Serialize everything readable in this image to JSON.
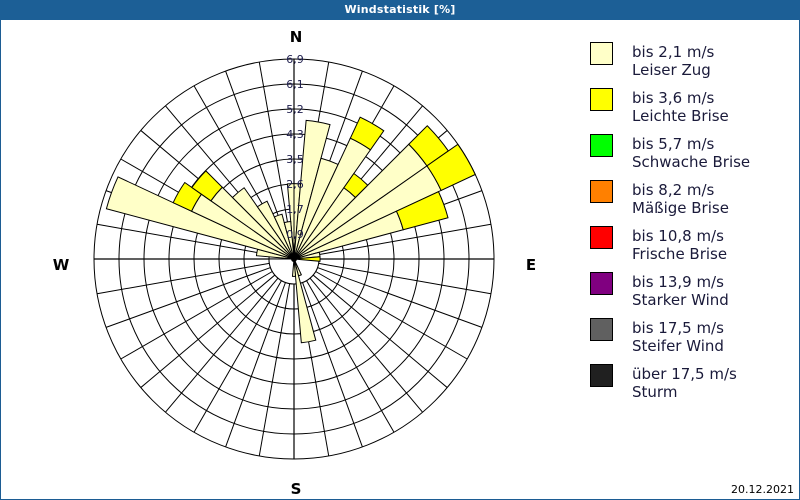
{
  "window": {
    "title": "Windstatistik [%]"
  },
  "footer": {
    "date": "20.12.2021"
  },
  "compass": {
    "n": "N",
    "e": "E",
    "s": "S",
    "w": "W"
  },
  "legend": [
    {
      "color": "#ffffc8",
      "line1": "bis 2,1 m/s",
      "line2": "Leiser Zug"
    },
    {
      "color": "#ffff00",
      "line1": "bis 3,6 m/s",
      "line2": "Leichte Brise"
    },
    {
      "color": "#00ff00",
      "line1": "bis 5,7 m/s",
      "line2": "Schwache Brise"
    },
    {
      "color": "#ff8000",
      "line1": "bis 8,2 m/s",
      "line2": "Mäßige Brise"
    },
    {
      "color": "#ff0000",
      "line1": "bis 10,8 m/s",
      "line2": "Frische Brise"
    },
    {
      "color": "#800080",
      "line1": "bis 13,9 m/s",
      "line2": "Starker Wind"
    },
    {
      "color": "#606060",
      "line1": "bis 17,5 m/s",
      "line2": "Steifer Wind"
    },
    {
      "color": "#202020",
      "line1": "über 17,5 m/s",
      "line2": "Sturm"
    }
  ],
  "chart_data": {
    "type": "wind_rose",
    "title": "Windstatistik [%]",
    "unit": "%",
    "radial_ticks": [
      "0,9",
      "1,7",
      "2,6",
      "3,5",
      "4,3",
      "5,2",
      "6,1",
      "6,9"
    ],
    "rmax": 6.9,
    "sector_width_deg": 10,
    "directions_deg": [
      0,
      10,
      20,
      30,
      40,
      50,
      60,
      70,
      80,
      90,
      100,
      110,
      120,
      130,
      140,
      150,
      160,
      170,
      180,
      190,
      200,
      210,
      220,
      230,
      240,
      250,
      260,
      270,
      280,
      290,
      300,
      310,
      320,
      330,
      340,
      350
    ],
    "series": [
      {
        "name": "bis 2,1 m/s Leiser Zug",
        "color": "#ffffc8",
        "values": [
          2.6,
          4.8,
          3.6,
          4.6,
          3.0,
          5.6,
          5.6,
          3.9,
          0.9,
          0,
          0,
          0,
          0,
          0,
          0,
          0,
          0.6,
          2.9,
          0.6,
          0,
          0,
          0,
          0,
          0,
          0,
          0,
          0,
          0,
          1.3,
          6.7,
          3.9,
          3.5,
          3.0,
          2.2,
          1.6,
          1.3
        ]
      },
      {
        "name": "bis 3,6 m/s Leichte Brise",
        "color": "#ffff00",
        "values": [
          0,
          0,
          0,
          0.8,
          0.6,
          0.9,
          1.3,
          1.6,
          0,
          0.9,
          0,
          0,
          0,
          0,
          0,
          0,
          0,
          0,
          0,
          0,
          0,
          0,
          0,
          0,
          0,
          0,
          0,
          0,
          0,
          0,
          0.7,
          0.8,
          0,
          0,
          0,
          0
        ]
      },
      {
        "name": "bis 5,7 m/s Schwache Brise",
        "color": "#00ff00",
        "values": []
      },
      {
        "name": "bis 8,2 m/s Mäßige Brise",
        "color": "#ff8000",
        "values": []
      },
      {
        "name": "bis 10,8 m/s Frische Brise",
        "color": "#ff0000",
        "values": []
      },
      {
        "name": "bis 13,9 m/s Starker Wind",
        "color": "#800080",
        "values": []
      },
      {
        "name": "bis 17,5 m/s Steifer Wind",
        "color": "#606060",
        "values": []
      },
      {
        "name": "über 17,5 m/s Sturm",
        "color": "#202020",
        "values": []
      }
    ]
  }
}
